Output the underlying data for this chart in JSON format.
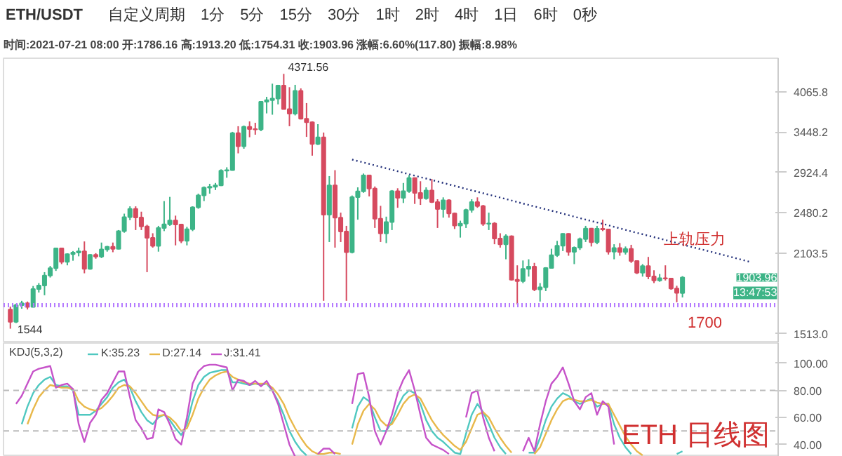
{
  "chart_data": [
    {
      "type": "candlestick",
      "title": "ETH/USDT",
      "subtitle": "时间:2021-07-21 08:00  开:1786.16  高:1913.20  低:1754.31  收:1903.96  涨幅:6.60%(117.80)  振幅:8.98%",
      "categories": [
        null,
        null,
        null,
        null,
        null,
        null,
        null,
        null,
        null,
        null,
        null,
        null,
        null,
        null,
        null,
        null,
        null,
        null,
        null,
        null,
        null,
        null,
        null,
        null,
        null,
        null,
        null,
        null,
        null,
        null,
        null,
        null,
        null,
        null,
        null,
        null,
        null,
        null,
        null,
        null,
        null,
        null,
        null,
        null,
        null,
        null,
        null,
        null,
        null,
        null,
        null,
        null,
        null,
        null,
        null,
        null,
        null,
        null,
        null,
        null,
        null,
        null,
        null,
        null,
        null,
        null,
        null,
        null,
        null,
        null,
        null,
        null,
        null,
        null,
        null,
        null,
        null,
        null,
        null,
        null,
        null,
        null,
        null,
        null,
        null,
        null,
        null,
        null,
        null,
        null,
        null,
        null,
        null,
        null,
        null,
        null,
        null,
        null,
        null,
        null,
        null,
        null,
        null,
        null,
        null,
        null,
        null,
        null,
        null,
        null,
        null,
        null,
        null,
        null,
        null,
        null,
        null,
        null,
        null,
        null,
        null,
        null,
        null,
        null,
        null,
        null,
        null,
        null,
        null,
        null,
        null,
        null,
        null,
        null,
        null
      ],
      "ohlc": [
        [
          1670,
          1690,
          1544,
          1588
        ],
        [
          1588,
          1710,
          1580,
          1700
        ],
        [
          1700,
          1730,
          1675,
          1713
        ],
        [
          1713,
          1725,
          1670,
          1688
        ],
        [
          1688,
          1838,
          1684,
          1816
        ],
        [
          1816,
          1860,
          1790,
          1841
        ],
        [
          1841,
          1945,
          1770,
          1919
        ],
        [
          1919,
          1995,
          1903,
          1977
        ],
        [
          1977,
          2150,
          1955,
          2143
        ],
        [
          2143,
          2145,
          2010,
          2028
        ],
        [
          2028,
          2100,
          2000,
          2093
        ],
        [
          2093,
          2120,
          2038,
          2107
        ],
        [
          2107,
          2150,
          2075,
          2118
        ],
        [
          2118,
          2205,
          1936,
          1971
        ],
        [
          1971,
          2094,
          1965,
          2088
        ],
        [
          2088,
          2102,
          2055,
          2072
        ],
        [
          2072,
          2195,
          2060,
          2135
        ],
        [
          2135,
          2165,
          2115,
          2157
        ],
        [
          2157,
          2195,
          2110,
          2139
        ],
        [
          2139,
          2310,
          2135,
          2300
        ],
        [
          2300,
          2470,
          2285,
          2435
        ],
        [
          2435,
          2545,
          2405,
          2519
        ],
        [
          2519,
          2545,
          2310,
          2431
        ],
        [
          2431,
          2490,
          2310,
          2344
        ],
        [
          2344,
          2360,
          1945,
          2237
        ],
        [
          2237,
          2280,
          2150,
          2166
        ],
        [
          2166,
          2350,
          2115,
          2330
        ],
        [
          2330,
          2600,
          2300,
          2364
        ],
        [
          2364,
          2645,
          2350,
          2403
        ],
        [
          2403,
          2450,
          2170,
          2363
        ],
        [
          2363,
          2370,
          2190,
          2211
        ],
        [
          2211,
          2340,
          2170,
          2317
        ],
        [
          2317,
          2545,
          2300,
          2534
        ],
        [
          2534,
          2680,
          2520,
          2662
        ],
        [
          2662,
          2760,
          2600,
          2746
        ],
        [
          2746,
          2790,
          2680,
          2757
        ],
        [
          2757,
          2800,
          2720,
          2773
        ],
        [
          2773,
          2960,
          2765,
          2945
        ],
        [
          2945,
          2985,
          2860,
          2950
        ],
        [
          2950,
          3450,
          2945,
          3431
        ],
        [
          3431,
          3530,
          3160,
          3253
        ],
        [
          3253,
          3540,
          3220,
          3522
        ],
        [
          3522,
          3600,
          3375,
          3490
        ],
        [
          3490,
          3580,
          3410,
          3484
        ],
        [
          3484,
          3905,
          3460,
          3902
        ],
        [
          3902,
          3980,
          3720,
          3928
        ],
        [
          3928,
          4200,
          3700,
          3952
        ],
        [
          3952,
          4180,
          3860,
          4168
        ],
        [
          4168,
          4371.56,
          3785,
          3785
        ],
        [
          3785,
          4140,
          3530,
          3715
        ],
        [
          3715,
          4180,
          3690,
          4079
        ],
        [
          4079,
          4120,
          3630,
          3640
        ],
        [
          3640,
          3880,
          3380,
          3587
        ],
        [
          3587,
          3600,
          3130,
          3282
        ],
        [
          3282,
          3560,
          3270,
          3374
        ],
        [
          3374,
          3440,
          1730,
          2460
        ],
        [
          2460,
          2880,
          2200,
          2772
        ],
        [
          2772,
          2950,
          2150,
          2430
        ],
        [
          2430,
          2480,
          2200,
          2296
        ],
        [
          2296,
          2350,
          1730,
          2110
        ],
        [
          2110,
          2660,
          2100,
          2643
        ],
        [
          2643,
          2750,
          2410,
          2706
        ],
        [
          2706,
          2910,
          2690,
          2888
        ],
        [
          2888,
          2890,
          2650,
          2736
        ],
        [
          2736,
          2760,
          2330,
          2419
        ],
        [
          2419,
          2550,
          2200,
          2279
        ],
        [
          2279,
          2440,
          2190,
          2387
        ],
        [
          2387,
          2720,
          2310,
          2707
        ],
        [
          2707,
          2740,
          2530,
          2634
        ],
        [
          2634,
          2800,
          2580,
          2707
        ],
        [
          2707,
          2890,
          2690,
          2856
        ],
        [
          2856,
          2860,
          2570,
          2689
        ],
        [
          2689,
          2820,
          2560,
          2630
        ],
        [
          2630,
          2750,
          2615,
          2715
        ],
        [
          2715,
          2845,
          2580,
          2590
        ],
        [
          2590,
          2620,
          2330,
          2517
        ],
        [
          2517,
          2640,
          2430,
          2608
        ],
        [
          2608,
          2620,
          2430,
          2472
        ],
        [
          2472,
          2480,
          2320,
          2353
        ],
        [
          2353,
          2400,
          2240,
          2372
        ],
        [
          2372,
          2520,
          2330,
          2508
        ],
        [
          2508,
          2620,
          2480,
          2590
        ],
        [
          2590,
          2640,
          2530,
          2547
        ],
        [
          2547,
          2560,
          2350,
          2369
        ],
        [
          2369,
          2480,
          2310,
          2373
        ],
        [
          2373,
          2385,
          2180,
          2231
        ],
        [
          2231,
          2280,
          2150,
          2179
        ],
        [
          2179,
          2270,
          2050,
          2252
        ],
        [
          2252,
          2260,
          1880,
          1886
        ],
        [
          1886,
          2000,
          1705,
          1875
        ],
        [
          1875,
          2040,
          1860,
          1971
        ],
        [
          1971,
          2050,
          1910,
          1990
        ],
        [
          1990,
          2020,
          1800,
          1813
        ],
        [
          1813,
          1860,
          1725,
          1829
        ],
        [
          1829,
          1985,
          1800,
          1978
        ],
        [
          1978,
          2140,
          1975,
          2084
        ],
        [
          2084,
          2210,
          2070,
          2167
        ],
        [
          2167,
          2280,
          2120,
          2275
        ],
        [
          2275,
          2280,
          2080,
          2113
        ],
        [
          2113,
          2160,
          2010,
          2150
        ],
        [
          2150,
          2240,
          2130,
          2227
        ],
        [
          2227,
          2350,
          2200,
          2324
        ],
        [
          2324,
          2330,
          2160,
          2198
        ],
        [
          2198,
          2350,
          2180,
          2323
        ],
        [
          2323,
          2410,
          2300,
          2316
        ],
        [
          2316,
          2320,
          2090,
          2115
        ],
        [
          2115,
          2180,
          2050,
          2146
        ],
        [
          2146,
          2190,
          2080,
          2111
        ],
        [
          2111,
          2160,
          2090,
          2139
        ],
        [
          2139,
          2175,
          2020,
          2036
        ],
        [
          2036,
          2040,
          1930,
          1940
        ],
        [
          1940,
          2010,
          1910,
          1994
        ],
        [
          1994,
          2070,
          1890,
          1911
        ],
        [
          1911,
          1960,
          1860,
          1880
        ],
        [
          1880,
          1930,
          1870,
          1898
        ],
        [
          1898,
          2000,
          1880,
          1895
        ],
        [
          1895,
          1900,
          1810,
          1819
        ],
        [
          1819,
          1840,
          1720,
          1787
        ],
        [
          1786.16,
          1913.2,
          1754.31,
          1903.96
        ],
        null,
        null,
        null,
        null,
        null,
        null,
        null,
        null,
        null,
        null,
        null,
        null,
        null,
        null,
        null,
        null
      ],
      "colors": [
        "#d64a5f",
        "#3db487",
        "#3db487",
        "#d64a5f",
        "#3db487",
        "#3db487",
        "#3db487",
        "#3db487",
        "#3db487",
        "#d64a5f",
        "#3db487",
        "#3db487",
        "#3db487",
        "#d64a5f",
        "#3db487",
        "#d64a5f",
        "#3db487",
        "#3db487",
        "#d64a5f",
        "#3db487",
        "#3db487",
        "#3db487",
        "#d64a5f",
        "#d64a5f",
        "#d64a5f",
        "#d64a5f",
        "#3db487",
        "#3db487",
        "#3db487",
        "#d64a5f",
        "#d64a5f",
        "#3db487",
        "#3db487",
        "#3db487",
        "#3db487",
        "#3db487",
        "#3db487",
        "#3db487",
        "#3db487",
        "#3db487",
        "#d64a5f",
        "#3db487",
        "#d64a5f",
        "#d64a5f",
        "#3db487",
        "#3db487",
        "#3db487",
        "#3db487",
        "#d64a5f",
        "#d64a5f",
        "#3db487",
        "#d64a5f",
        "#d64a5f",
        "#d64a5f",
        "#3db487",
        "#d64a5f",
        "#3db487",
        "#d64a5f",
        "#d64a5f",
        "#d64a5f",
        "#3db487",
        "#3db487",
        "#3db487",
        "#d64a5f",
        "#d64a5f",
        "#d64a5f",
        "#3db487",
        "#3db487",
        "#d64a5f",
        "#3db487",
        "#3db487",
        "#d64a5f",
        "#d64a5f",
        "#3db487",
        "#d64a5f",
        "#d64a5f",
        "#3db487",
        "#d64a5f",
        "#d64a5f",
        "#3db487",
        "#3db487",
        "#3db487",
        "#d64a5f",
        "#d64a5f",
        "#3db487",
        "#d64a5f",
        "#d64a5f",
        "#3db487",
        "#d64a5f",
        "#d64a5f",
        "#3db487",
        "#3db487",
        "#d64a5f",
        "#3db487",
        "#3db487",
        "#3db487",
        "#3db487",
        "#3db487",
        "#d64a5f",
        "#3db487",
        "#3db487",
        "#3db487",
        "#d64a5f",
        "#3db487",
        "#d64a5f",
        "#d64a5f",
        "#3db487",
        "#d64a5f",
        "#3db487",
        "#d64a5f",
        "#d64a5f",
        "#3db487",
        "#d64a5f",
        "#d64a5f",
        "#3db487",
        "#d64a5f",
        "#d64a5f",
        "#d64a5f",
        "#3db487",
        null,
        null,
        null,
        null,
        null,
        null,
        null,
        null,
        null,
        null,
        null,
        null,
        null,
        null,
        null,
        null
      ],
      "series": [
        {
          "name": "上轨压力",
          "type": "line",
          "color": "#23307a",
          "line_style": "dotted",
          "values": [
            null,
            null,
            null,
            null,
            null,
            null,
            null,
            null,
            null,
            null,
            null,
            null,
            null,
            null,
            null,
            null,
            null,
            null,
            null,
            null,
            null,
            null,
            null,
            null,
            null,
            null,
            null,
            null,
            null,
            null,
            null,
            null,
            null,
            null,
            null,
            null,
            null,
            null,
            null,
            null,
            null,
            null,
            null,
            null,
            null,
            null,
            null,
            null,
            null,
            null,
            null,
            null,
            null,
            null,
            null,
            null,
            null,
            null,
            null,
            null,
            3080,
            3062,
            3044,
            3026,
            3008,
            2991,
            2973,
            2955,
            2937,
            2919,
            2901,
            2884,
            2867,
            2851,
            2834,
            2817,
            2800,
            2783,
            2767,
            2750,
            2733,
            2717,
            2701,
            2685,
            2669,
            2654,
            2638,
            2622,
            2606,
            2590,
            2574,
            2559,
            2544,
            2529,
            2514,
            2500,
            2485,
            2470,
            2455,
            2440,
            2425,
            2411,
            2397,
            2383,
            2369,
            2355,
            2340,
            2326,
            2312,
            2298,
            2284,
            2271,
            2257,
            2244,
            2231,
            2218,
            2204,
            2191,
            2178,
            2164,
            2151,
            2139,
            2126,
            2114,
            2101,
            2089,
            2076,
            2064,
            2051,
            2039,
            2026,
            null,
            null,
            null,
            null
          ]
        }
      ],
      "log": "y",
      "ylim": [
        1456,
        4660
      ],
      "yticks": [
        {
          "value": 1513.0,
          "label": "1513.0"
        },
        2103.5,
        2480.2,
        2924.4,
        3448.2,
        4065.8
      ],
      "tick_labels": "y",
      "ref_lines": [
        {
          "axis": "y",
          "value": 1700,
          "label": "1700",
          "color": "#b57bff",
          "line_style": "dotted"
        }
      ],
      "annotations": [
        "4371.56",
        "1544",
        "1903.96",
        "13:47:53",
        "自定义周期",
        "1分",
        "5分",
        "15分",
        "30分",
        "1时",
        "2时",
        "4时",
        "1日",
        "6时",
        "0秒"
      ]
    },
    {
      "type": "line",
      "title": "KDJ(5,3,2)",
      "categories": [
        null,
        null,
        null,
        null,
        null,
        null,
        null,
        null,
        null,
        null,
        null,
        null,
        null,
        null,
        null,
        null,
        null,
        null,
        null,
        null,
        null,
        null,
        null,
        null,
        null,
        null,
        null,
        null,
        null,
        null,
        null,
        null,
        null,
        null,
        null,
        null,
        null,
        null,
        null,
        null,
        null,
        null,
        null,
        null,
        null,
        null,
        null,
        null,
        null,
        null,
        null,
        null,
        null,
        null,
        null,
        null,
        null,
        null,
        null,
        null,
        null,
        null,
        null,
        null,
        null,
        null,
        null,
        null,
        null,
        null,
        null,
        null,
        null,
        null,
        null,
        null,
        null,
        null,
        null,
        null,
        null,
        null,
        null,
        null,
        null,
        null,
        null,
        null,
        null,
        null,
        null,
        null,
        null,
        null,
        null,
        null,
        null,
        null,
        null,
        null,
        null,
        null,
        null,
        null,
        null,
        null,
        null,
        null,
        null,
        null,
        null,
        null,
        null,
        null,
        null,
        null,
        null,
        null,
        null,
        null,
        null,
        null,
        null,
        null,
        null,
        null,
        null,
        null,
        null,
        null,
        null,
        null,
        null,
        null,
        null
      ],
      "series": [
        {
          "name": "K:35.23",
          "color": "#4fc8c0",
          "values": [
            null,
            null,
            55,
            68,
            78,
            84,
            88,
            90,
            84,
            83,
            83,
            80,
            62,
            62,
            62,
            65,
            70,
            75,
            82,
            86,
            88,
            82,
            72,
            64,
            58,
            55,
            60,
            62,
            58,
            52,
            47,
            55,
            72,
            84,
            90,
            93,
            94,
            95,
            95,
            86,
            86,
            85,
            84,
            85,
            84,
            85,
            80,
            72,
            62,
            50,
            42,
            36,
            32,
            null,
            null,
            null,
            null,
            null,
            null,
            null,
            52,
            68,
            75,
            72,
            60,
            50,
            50,
            57,
            68,
            76,
            80,
            78,
            70,
            58,
            50,
            45,
            42,
            38,
            34,
            33,
            48,
            62,
            70,
            64,
            55,
            45,
            38,
            33,
            null,
            null,
            null,
            34,
            34,
            45,
            58,
            68,
            74,
            78,
            76,
            72,
            70,
            72,
            74,
            68,
            70,
            70,
            55,
            45,
            38,
            33,
            null,
            null,
            null,
            null,
            null,
            null,
            null,
            33,
            35,
            null,
            null,
            null,
            null,
            null,
            null,
            null,
            null,
            null,
            null,
            null,
            null,
            null,
            null,
            null,
            null
          ]
        },
        {
          "name": "D:27.14",
          "color": "#e8b84a",
          "values": [
            null,
            null,
            null,
            55,
            66,
            75,
            80,
            84,
            83,
            82,
            82,
            81,
            72,
            68,
            66,
            65,
            67,
            71,
            76,
            82,
            84,
            83,
            78,
            72,
            66,
            62,
            61,
            62,
            60,
            56,
            50,
            52,
            62,
            74,
            82,
            88,
            91,
            93,
            94,
            90,
            88,
            86,
            85,
            85,
            85,
            85,
            82,
            77,
            70,
            60,
            52,
            45,
            39,
            35,
            33,
            33,
            34,
            34,
            33,
            null,
            40,
            55,
            65,
            70,
            66,
            58,
            54,
            55,
            62,
            70,
            75,
            77,
            74,
            66,
            58,
            52,
            47,
            43,
            39,
            36,
            42,
            52,
            62,
            64,
            60,
            52,
            45,
            39,
            34,
            null,
            null,
            null,
            33,
            38,
            48,
            58,
            66,
            72,
            74,
            73,
            72,
            72,
            73,
            71,
            70,
            70,
            62,
            54,
            46,
            40,
            35,
            32,
            null,
            null,
            null,
            null,
            null,
            null,
            null,
            null,
            null,
            null,
            null,
            null,
            null,
            null,
            null,
            null,
            null,
            null,
            null,
            null,
            null,
            null,
            null
          ]
        },
        {
          "name": "J:31.41",
          "color": "#c653c9",
          "values": [
            null,
            70,
            76,
            85,
            94,
            96,
            97,
            98,
            82,
            84,
            85,
            81,
            55,
            42,
            56,
            62,
            73,
            78,
            86,
            94,
            94,
            75,
            58,
            52,
            44,
            45,
            66,
            64,
            55,
            44,
            40,
            60,
            85,
            94,
            98,
            99,
            99,
            98,
            97,
            80,
            88,
            87,
            84,
            87,
            83,
            87,
            80,
            70,
            55,
            40,
            31,
            null,
            null,
            null,
            33,
            37,
            37,
            33,
            null,
            null,
            70,
            92,
            93,
            75,
            50,
            40,
            50,
            62,
            78,
            88,
            95,
            80,
            62,
            45,
            40,
            38,
            36,
            33,
            null,
            null,
            60,
            78,
            80,
            60,
            45,
            35,
            null,
            null,
            null,
            null,
            35,
            45,
            35,
            55,
            72,
            85,
            90,
            97,
            85,
            72,
            66,
            75,
            78,
            62,
            72,
            68,
            40,
            null,
            null,
            null,
            null,
            null,
            null,
            null,
            null,
            null,
            null,
            null,
            null,
            null,
            null,
            null,
            null,
            null,
            null,
            null,
            null,
            null,
            null,
            null,
            null,
            null,
            null,
            null,
            null
          ]
        }
      ],
      "ylim": [
        31,
        115
      ],
      "yticks": [
        {
          "value": 40,
          "label": "40.00"
        },
        {
          "value": 60,
          "label": "60.00"
        },
        {
          "value": 80,
          "label": "80.00"
        },
        {
          "value": 100,
          "label": "100.00"
        }
      ],
      "tick_labels": "y",
      "legend": "top left",
      "ref_lines": [
        {
          "axis": "y",
          "value": 80,
          "label": null,
          "color": "#bbbbbb",
          "line_style": "dashed"
        },
        {
          "axis": "y",
          "value": 50,
          "label": null,
          "color": "#bbbbbb",
          "line_style": "dashed"
        }
      ],
      "annotations": [
        "ETH 日线图"
      ]
    }
  ]
}
